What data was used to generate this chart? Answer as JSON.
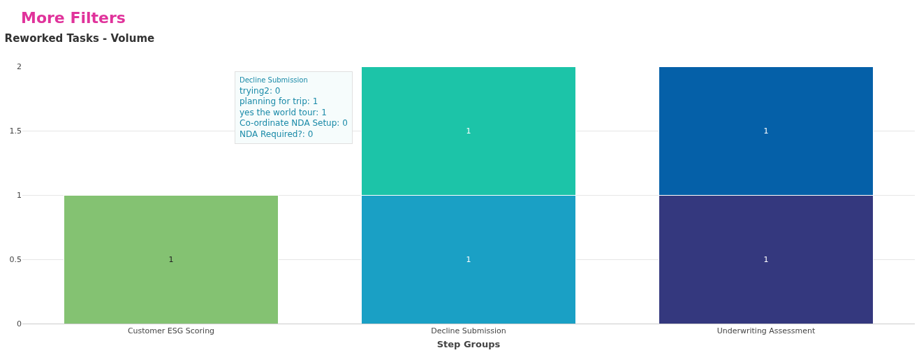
{
  "chart_data": {
    "type": "bar",
    "title": "Reworked Tasks - Volume",
    "xlabel": "Step Groups",
    "categories": [
      "Customer ESG Scoring",
      "Decline Submission",
      "Underwriting Assessment"
    ],
    "stacked": true,
    "series": [
      {
        "color": "#84c272",
        "values": [
          1,
          null,
          null
        ]
      },
      {
        "color": "#1aa0c5",
        "values": [
          null,
          1,
          null
        ]
      },
      {
        "color": "#1cc4a8",
        "values": [
          null,
          1,
          null
        ]
      },
      {
        "color": "#34387e",
        "values": [
          null,
          null,
          1
        ]
      },
      {
        "color": "#0560a8",
        "values": [
          null,
          null,
          1
        ]
      }
    ],
    "ylim": [
      0,
      2
    ],
    "yticks": [
      0,
      0.5,
      1,
      1.5,
      2
    ],
    "grid": "y",
    "data_labels": true,
    "annotations": [
      "More Filters",
      "Decline Submission",
      "trying2: 0",
      "planning for trip: 1",
      "yes the world tour: 1",
      "Co-ordinate NDA Setup: 0",
      "NDA Required?: 0"
    ]
  }
}
